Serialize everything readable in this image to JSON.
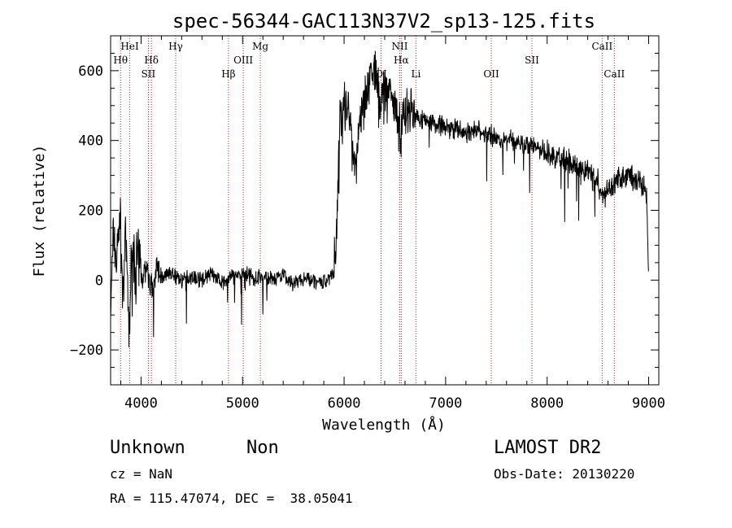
{
  "chart_data": {
    "type": "line",
    "title": "spec-56344-GAC113N37V2_sp13-125.fits",
    "xlabel": "Wavelength (Å)",
    "ylabel": "Flux (relative)",
    "xlim": [
      3700,
      9100
    ],
    "ylim": [
      -300,
      700
    ],
    "xticks": [
      4000,
      5000,
      6000,
      7000,
      8000,
      9000
    ],
    "xtick_labels": [
      "4000",
      "5000",
      "6000",
      "7000",
      "8000",
      "9000"
    ],
    "yticks": [
      -200,
      0,
      200,
      400,
      600
    ],
    "ytick_labels": [
      "−200",
      "0",
      "200",
      "400",
      "600"
    ],
    "grid": false,
    "line_color": "#000000",
    "marker_color": "#b22222",
    "series": [
      {
        "x": [
          3700,
          3730,
          3760,
          3790,
          3820,
          3850,
          3880,
          3910,
          3940,
          3970,
          4000,
          4050,
          4100,
          4150,
          4200,
          4300,
          4400,
          4500,
          4600,
          4700,
          4800,
          4900,
          5000,
          5100,
          5200,
          5300,
          5400,
          5500,
          5600,
          5700,
          5800,
          5850,
          5900,
          5920,
          5940,
          5960,
          5980,
          6000,
          6050,
          6100,
          6150,
          6200,
          6250,
          6300,
          6350,
          6400,
          6450,
          6500,
          6550,
          6600,
          6650,
          6700,
          6800,
          6900,
          7000,
          7100,
          7200,
          7300,
          7400,
          7500,
          7600,
          7700,
          7800,
          7900,
          8000,
          8100,
          8200,
          8300,
          8400,
          8500,
          8550,
          8600,
          8700,
          8800,
          8900,
          8980,
          9000
        ],
        "y": [
          -100,
          150,
          50,
          200,
          -50,
          120,
          -150,
          80,
          30,
          60,
          10,
          40,
          -20,
          30,
          10,
          20,
          0,
          10,
          0,
          20,
          -10,
          10,
          20,
          5,
          10,
          0,
          10,
          -10,
          5,
          0,
          -10,
          10,
          20,
          100,
          300,
          500,
          420,
          500,
          480,
          300,
          450,
          520,
          580,
          600,
          500,
          560,
          540,
          520,
          420,
          480,
          500,
          470,
          460,
          450,
          440,
          430,
          420,
          430,
          420,
          410,
          400,
          400,
          390,
          380,
          360,
          350,
          340,
          320,
          310,
          280,
          240,
          260,
          290,
          300,
          280,
          250,
          0
        ]
      }
    ],
    "markers": [
      {
        "label": "Hθ",
        "x": 3798,
        "row": 2
      },
      {
        "label": "HeI",
        "x": 3889,
        "row": 1
      },
      {
        "label": "Hδ",
        "x": 4102,
        "row": 2
      },
      {
        "label": "SII",
        "x": 4072,
        "row": 3
      },
      {
        "label": "Hγ",
        "x": 4341,
        "row": 1
      },
      {
        "label": "Hβ",
        "x": 4861,
        "row": 3
      },
      {
        "label": "OIII",
        "x": 5007,
        "row": 2
      },
      {
        "label": "Mg",
        "x": 5175,
        "row": 1
      },
      {
        "label": "OI",
        "x": 6364,
        "row": 3
      },
      {
        "label": "NII",
        "x": 6548,
        "row": 1
      },
      {
        "label": "Hα",
        "x": 6563,
        "row": 2
      },
      {
        "label": "Li",
        "x": 6708,
        "row": 3
      },
      {
        "label": "OII",
        "x": 7450,
        "row": 3
      },
      {
        "label": "SII",
        "x": 7850,
        "row": 2
      },
      {
        "label": "CaII",
        "x": 8542,
        "row": 1
      },
      {
        "label": "CaII",
        "x": 8662,
        "row": 3
      }
    ]
  },
  "info": {
    "object_class": "Unknown",
    "object_subclass": "Non",
    "survey": "LAMOST DR2",
    "redshift": "cz = NaN",
    "obs_date": "Obs-Date: 20130220",
    "coords": "RA = 115.47074, DEC =  38.05041"
  }
}
